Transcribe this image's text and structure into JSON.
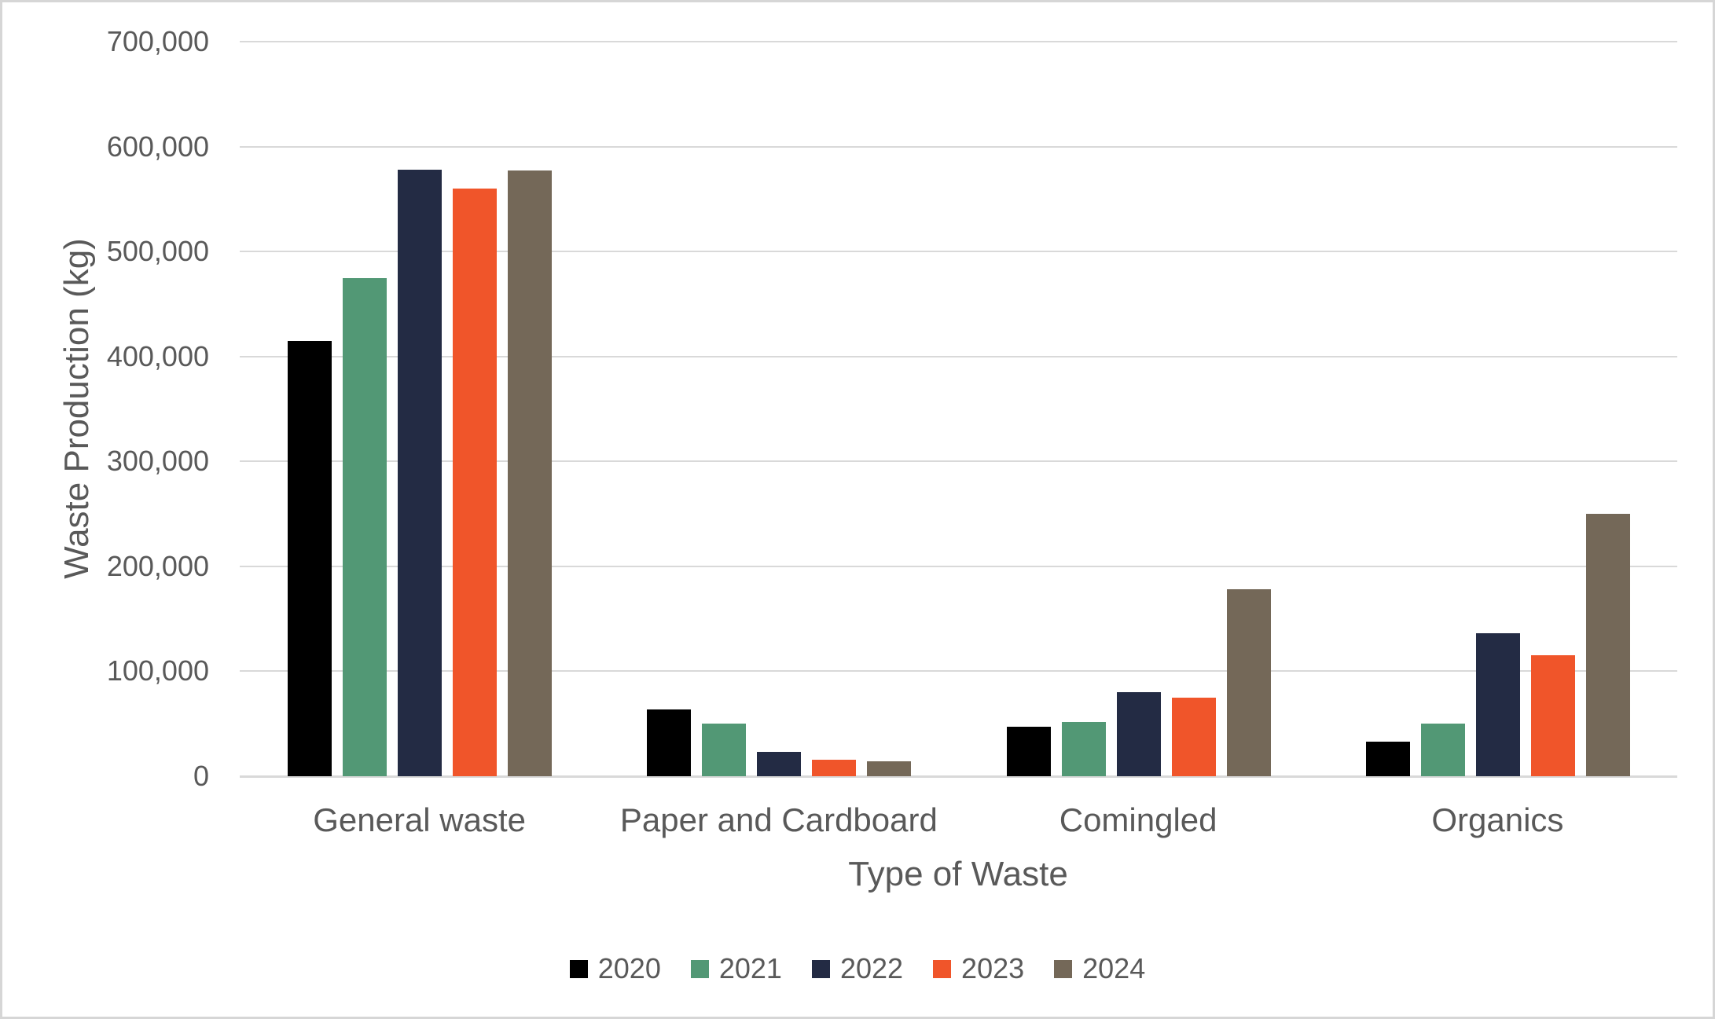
{
  "chart_data": {
    "type": "bar",
    "title": "",
    "xlabel": "Type of Waste",
    "ylabel": "Waste Production (kg)",
    "ylim": [
      0,
      700000
    ],
    "grid": true,
    "legend_position": "bottom",
    "yticks": [
      {
        "value": 0,
        "label": "0"
      },
      {
        "value": 100000,
        "label": "100,000"
      },
      {
        "value": 200000,
        "label": "200,000"
      },
      {
        "value": 300000,
        "label": "300,000"
      },
      {
        "value": 400000,
        "label": "400,000"
      },
      {
        "value": 500000,
        "label": "500,000"
      },
      {
        "value": 600000,
        "label": "600,000"
      },
      {
        "value": 700000,
        "label": "700,000"
      }
    ],
    "categories": [
      "General waste",
      "Paper and Cardboard",
      "Comingled",
      "Organics"
    ],
    "series": [
      {
        "name": "2020",
        "color": "#000000",
        "values": [
          415000,
          64000,
          47000,
          33000
        ]
      },
      {
        "name": "2021",
        "color": "#529875",
        "values": [
          475000,
          50000,
          52000,
          50000
        ]
      },
      {
        "name": "2022",
        "color": "#232B44",
        "values": [
          578000,
          23000,
          80000,
          136000
        ]
      },
      {
        "name": "2023",
        "color": "#F0552A",
        "values": [
          560000,
          16000,
          75000,
          115000
        ]
      },
      {
        "name": "2024",
        "color": "#746858",
        "values": [
          577000,
          14000,
          178000,
          250000
        ]
      }
    ],
    "colors": {
      "grid": "#D9D9D9",
      "axis": "#D9D9D9",
      "text": "#595959",
      "background": "#FFFFFF",
      "frame": "#D6D6D6"
    }
  }
}
